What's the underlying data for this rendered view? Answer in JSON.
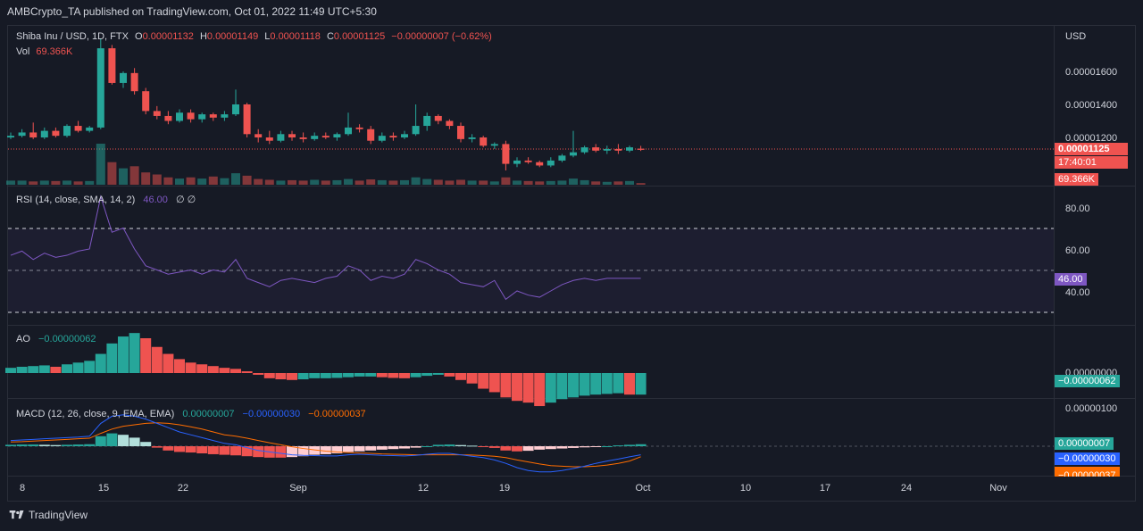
{
  "header": {
    "published": "AMBCrypto_TA published on TradingView.com, Oct 01, 2022 11:49 UTC+5:30"
  },
  "legend": {
    "symbol": "Shiba Inu / USD, 1D, FTX",
    "o_label": "O",
    "o_value": "0.00001132",
    "h_label": "H",
    "h_value": "0.00001149",
    "l_label": "L",
    "l_value": "0.00001118",
    "c_label": "C",
    "c_value": "0.00001125",
    "change": "−0.00000007 (−0.62%)",
    "vol_label": "Vol",
    "vol_value": "69.366K"
  },
  "price_axis": {
    "currency": "USD",
    "ticks": [
      "0.00001600",
      "0.00001400",
      "0.00001200"
    ],
    "last_price_tag": "0.00001125",
    "countdown_tag": "17:40:01",
    "volume_tag": "69.366K"
  },
  "rsi": {
    "label": "RSI (14, close, SMA, 14, 2)",
    "value": "46.00",
    "extra": "∅ ∅",
    "ticks": [
      "80.00",
      "60.00",
      "40.00"
    ],
    "tag": "46.00"
  },
  "ao": {
    "label": "AO",
    "value": "−0.00000062",
    "tick": "0.00000000",
    "tag": "−0.00000062"
  },
  "macd": {
    "label": "MACD (12, 26, close, 9, EMA, EMA)",
    "hist_value": "0.00000007",
    "macd_value": "−0.00000030",
    "signal_value": "−0.00000037",
    "tick": "0.00000100",
    "tag_hist": "0.00000007",
    "tag_macd": "−0.00000030",
    "tag_signal": "−0.00000037"
  },
  "time_axis": [
    "8",
    "15",
    "22",
    "Sep",
    "12",
    "19",
    "Oct",
    "10",
    "17",
    "24",
    "Nov"
  ],
  "footer": {
    "brand": "TradingView"
  },
  "colors": {
    "up": "#26a69a",
    "down": "#ef5350",
    "rsi": "#7e57c2",
    "macd": "#2962ff",
    "signal": "#ff6d00",
    "bg": "#161a25",
    "grid": "#2a2e39",
    "text": "#d1d4dc"
  },
  "chart_data": {
    "type": "candlestick",
    "ylim": [
      1.05e-05,
      1.8e-05
    ],
    "x": [
      "Aug 6",
      "Aug 7",
      "Aug 8",
      "Aug 9",
      "Aug 10",
      "Aug 11",
      "Aug 12",
      "Aug 13",
      "Aug 14",
      "Aug 15",
      "Aug 16",
      "Aug 17",
      "Aug 18",
      "Aug 19",
      "Aug 20",
      "Aug 21",
      "Aug 22",
      "Aug 23",
      "Aug 24",
      "Aug 25",
      "Aug 26",
      "Aug 27",
      "Aug 28",
      "Aug 29",
      "Aug 30",
      "Aug 31",
      "Sep 1",
      "Sep 2",
      "Sep 3",
      "Sep 4",
      "Sep 5",
      "Sep 6",
      "Sep 7",
      "Sep 8",
      "Sep 9",
      "Sep 10",
      "Sep 11",
      "Sep 12",
      "Sep 13",
      "Sep 14",
      "Sep 15",
      "Sep 16",
      "Sep 17",
      "Sep 18",
      "Sep 19",
      "Sep 20",
      "Sep 21",
      "Sep 22",
      "Sep 23",
      "Sep 24",
      "Sep 25",
      "Sep 26",
      "Sep 27",
      "Sep 28",
      "Sep 29",
      "Sep 30",
      "Oct 1"
    ],
    "candles": [
      {
        "o": 1.2,
        "h": 1.23,
        "l": 1.19,
        "c": 1.21
      },
      {
        "o": 1.21,
        "h": 1.25,
        "l": 1.2,
        "c": 1.23
      },
      {
        "o": 1.23,
        "h": 1.29,
        "l": 1.19,
        "c": 1.2
      },
      {
        "o": 1.2,
        "h": 1.26,
        "l": 1.19,
        "c": 1.24
      },
      {
        "o": 1.24,
        "h": 1.26,
        "l": 1.2,
        "c": 1.21
      },
      {
        "o": 1.21,
        "h": 1.28,
        "l": 1.2,
        "c": 1.27
      },
      {
        "o": 1.27,
        "h": 1.3,
        "l": 1.23,
        "c": 1.24
      },
      {
        "o": 1.24,
        "h": 1.27,
        "l": 1.23,
        "c": 1.26
      },
      {
        "o": 1.26,
        "h": 1.8,
        "l": 1.25,
        "c": 1.74
      },
      {
        "o": 1.74,
        "h": 1.76,
        "l": 1.52,
        "c": 1.53
      },
      {
        "o": 1.53,
        "h": 1.6,
        "l": 1.5,
        "c": 1.59
      },
      {
        "o": 1.59,
        "h": 1.62,
        "l": 1.46,
        "c": 1.48
      },
      {
        "o": 1.48,
        "h": 1.5,
        "l": 1.34,
        "c": 1.36
      },
      {
        "o": 1.36,
        "h": 1.39,
        "l": 1.31,
        "c": 1.33
      },
      {
        "o": 1.33,
        "h": 1.36,
        "l": 1.28,
        "c": 1.3
      },
      {
        "o": 1.3,
        "h": 1.37,
        "l": 1.29,
        "c": 1.35
      },
      {
        "o": 1.35,
        "h": 1.37,
        "l": 1.29,
        "c": 1.31
      },
      {
        "o": 1.31,
        "h": 1.35,
        "l": 1.29,
        "c": 1.34
      },
      {
        "o": 1.34,
        "h": 1.35,
        "l": 1.3,
        "c": 1.32
      },
      {
        "o": 1.32,
        "h": 1.36,
        "l": 1.3,
        "c": 1.34
      },
      {
        "o": 1.34,
        "h": 1.49,
        "l": 1.33,
        "c": 1.4
      },
      {
        "o": 1.4,
        "h": 1.41,
        "l": 1.2,
        "c": 1.22
      },
      {
        "o": 1.22,
        "h": 1.25,
        "l": 1.17,
        "c": 1.2
      },
      {
        "o": 1.2,
        "h": 1.24,
        "l": 1.16,
        "c": 1.18
      },
      {
        "o": 1.18,
        "h": 1.24,
        "l": 1.17,
        "c": 1.22
      },
      {
        "o": 1.22,
        "h": 1.24,
        "l": 1.18,
        "c": 1.2
      },
      {
        "o": 1.2,
        "h": 1.23,
        "l": 1.17,
        "c": 1.19
      },
      {
        "o": 1.19,
        "h": 1.23,
        "l": 1.18,
        "c": 1.21
      },
      {
        "o": 1.21,
        "h": 1.23,
        "l": 1.19,
        "c": 1.2
      },
      {
        "o": 1.2,
        "h": 1.23,
        "l": 1.18,
        "c": 1.22
      },
      {
        "o": 1.22,
        "h": 1.35,
        "l": 1.21,
        "c": 1.26
      },
      {
        "o": 1.26,
        "h": 1.28,
        "l": 1.23,
        "c": 1.25
      },
      {
        "o": 1.25,
        "h": 1.27,
        "l": 1.16,
        "c": 1.18
      },
      {
        "o": 1.18,
        "h": 1.23,
        "l": 1.17,
        "c": 1.21
      },
      {
        "o": 1.21,
        "h": 1.23,
        "l": 1.18,
        "c": 1.2
      },
      {
        "o": 1.2,
        "h": 1.24,
        "l": 1.19,
        "c": 1.22
      },
      {
        "o": 1.22,
        "h": 1.4,
        "l": 1.21,
        "c": 1.27
      },
      {
        "o": 1.27,
        "h": 1.35,
        "l": 1.24,
        "c": 1.33
      },
      {
        "o": 1.33,
        "h": 1.34,
        "l": 1.28,
        "c": 1.3
      },
      {
        "o": 1.3,
        "h": 1.31,
        "l": 1.25,
        "c": 1.27
      },
      {
        "o": 1.27,
        "h": 1.29,
        "l": 1.17,
        "c": 1.19
      },
      {
        "o": 1.19,
        "h": 1.22,
        "l": 1.17,
        "c": 1.2
      },
      {
        "o": 1.2,
        "h": 1.21,
        "l": 1.14,
        "c": 1.15
      },
      {
        "o": 1.15,
        "h": 1.17,
        "l": 1.13,
        "c": 1.16
      },
      {
        "o": 1.16,
        "h": 1.18,
        "l": 1.0,
        "c": 1.04
      },
      {
        "o": 1.04,
        "h": 1.08,
        "l": 1.02,
        "c": 1.06
      },
      {
        "o": 1.06,
        "h": 1.08,
        "l": 1.04,
        "c": 1.05
      },
      {
        "o": 1.05,
        "h": 1.06,
        "l": 1.02,
        "c": 1.03
      },
      {
        "o": 1.03,
        "h": 1.08,
        "l": 1.02,
        "c": 1.06
      },
      {
        "o": 1.06,
        "h": 1.1,
        "l": 1.05,
        "c": 1.09
      },
      {
        "o": 1.09,
        "h": 1.24,
        "l": 1.08,
        "c": 1.11
      },
      {
        "o": 1.11,
        "h": 1.15,
        "l": 1.1,
        "c": 1.14
      },
      {
        "o": 1.14,
        "h": 1.16,
        "l": 1.11,
        "c": 1.12
      },
      {
        "o": 1.12,
        "h": 1.15,
        "l": 1.1,
        "c": 1.13
      },
      {
        "o": 1.13,
        "h": 1.16,
        "l": 1.1,
        "c": 1.12
      },
      {
        "o": 1.12,
        "h": 1.15,
        "l": 1.11,
        "c": 1.14
      },
      {
        "o": 1.132,
        "h": 1.149,
        "l": 1.118,
        "c": 1.125
      }
    ],
    "price_scale": "1e-5",
    "volume": [
      0.1,
      0.1,
      0.08,
      0.1,
      0.09,
      0.1,
      0.08,
      0.09,
      1.0,
      0.55,
      0.4,
      0.45,
      0.3,
      0.25,
      0.18,
      0.15,
      0.18,
      0.15,
      0.2,
      0.16,
      0.28,
      0.22,
      0.14,
      0.12,
      0.1,
      0.11,
      0.1,
      0.12,
      0.1,
      0.11,
      0.14,
      0.1,
      0.13,
      0.11,
      0.1,
      0.11,
      0.18,
      0.14,
      0.12,
      0.1,
      0.12,
      0.1,
      0.1,
      0.08,
      0.18,
      0.1,
      0.09,
      0.08,
      0.09,
      0.1,
      0.15,
      0.11,
      0.08,
      0.07,
      0.08,
      0.09,
      0.04
    ],
    "rsi": [
      57,
      59,
      55,
      58,
      56,
      57,
      59,
      60,
      85,
      68,
      70,
      60,
      52,
      50,
      48,
      49,
      50,
      48,
      50,
      49,
      55,
      46,
      44,
      42,
      45,
      46,
      45,
      44,
      46,
      47,
      52,
      50,
      45,
      47,
      46,
      48,
      55,
      53,
      50,
      48,
      44,
      43,
      42,
      45,
      36,
      40,
      38,
      37,
      40,
      43,
      45,
      46,
      45,
      46,
      46,
      46,
      46
    ],
    "ao": [
      0.15,
      0.18,
      0.2,
      0.22,
      0.18,
      0.25,
      0.3,
      0.35,
      0.55,
      0.85,
      1.05,
      1.15,
      1.0,
      0.75,
      0.55,
      0.4,
      0.3,
      0.25,
      0.2,
      0.15,
      0.12,
      0.05,
      -0.05,
      -0.15,
      -0.18,
      -0.2,
      -0.18,
      -0.15,
      -0.15,
      -0.14,
      -0.12,
      -0.1,
      -0.1,
      -0.12,
      -0.14,
      -0.15,
      -0.12,
      -0.08,
      -0.05,
      -0.1,
      -0.2,
      -0.3,
      -0.45,
      -0.55,
      -0.7,
      -0.8,
      -0.85,
      -0.95,
      -0.85,
      -0.75,
      -0.7,
      -0.65,
      -0.62,
      -0.6,
      -0.58,
      -0.62,
      -0.62
    ],
    "macd_hist": [
      0.05,
      0.06,
      0.06,
      0.05,
      0.04,
      0.05,
      0.06,
      0.07,
      0.35,
      0.45,
      0.4,
      0.3,
      0.15,
      -0.05,
      -0.15,
      -0.2,
      -0.22,
      -0.25,
      -0.28,
      -0.3,
      -0.32,
      -0.35,
      -0.38,
      -0.4,
      -0.4,
      -0.38,
      -0.35,
      -0.3,
      -0.28,
      -0.25,
      -0.2,
      -0.18,
      -0.15,
      -0.12,
      -0.1,
      -0.08,
      -0.05,
      0.0,
      0.05,
      0.06,
      0.04,
      0.02,
      -0.02,
      -0.06,
      -0.15,
      -0.18,
      -0.16,
      -0.12,
      -0.1,
      -0.08,
      -0.06,
      -0.04,
      -0.02,
      0.0,
      0.03,
      0.05,
      0.07
    ],
    "macd_line": [
      0.2,
      0.22,
      0.24,
      0.26,
      0.28,
      0.3,
      0.32,
      0.35,
      0.8,
      1.05,
      1.1,
      1.05,
      0.95,
      0.8,
      0.65,
      0.5,
      0.4,
      0.3,
      0.2,
      0.1,
      0.05,
      -0.05,
      -0.15,
      -0.2,
      -0.25,
      -0.3,
      -0.32,
      -0.33,
      -0.34,
      -0.34,
      -0.3,
      -0.28,
      -0.3,
      -0.32,
      -0.33,
      -0.34,
      -0.32,
      -0.28,
      -0.25,
      -0.25,
      -0.3,
      -0.35,
      -0.4,
      -0.48,
      -0.6,
      -0.75,
      -0.85,
      -0.9,
      -0.9,
      -0.85,
      -0.78,
      -0.7,
      -0.6,
      -0.52,
      -0.45,
      -0.37,
      -0.3
    ],
    "signal_line": [
      0.15,
      0.16,
      0.18,
      0.2,
      0.22,
      0.24,
      0.26,
      0.28,
      0.45,
      0.6,
      0.7,
      0.75,
      0.8,
      0.82,
      0.8,
      0.75,
      0.68,
      0.6,
      0.5,
      0.4,
      0.35,
      0.28,
      0.2,
      0.12,
      0.05,
      -0.02,
      -0.08,
      -0.13,
      -0.17,
      -0.2,
      -0.22,
      -0.24,
      -0.25,
      -0.27,
      -0.28,
      -0.29,
      -0.3,
      -0.3,
      -0.3,
      -0.3,
      -0.3,
      -0.31,
      -0.33,
      -0.35,
      -0.4,
      -0.48,
      -0.55,
      -0.62,
      -0.68,
      -0.7,
      -0.72,
      -0.72,
      -0.7,
      -0.66,
      -0.6,
      -0.52,
      -0.37
    ]
  }
}
